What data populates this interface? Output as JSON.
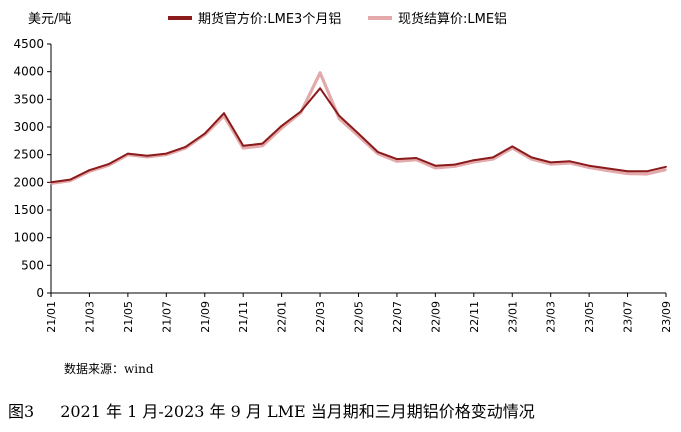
{
  "chart_data": {
    "type": "line",
    "y_unit": "美元/吨",
    "ylim": [
      0,
      4500
    ],
    "y_ticks": [
      0,
      500,
      1000,
      1500,
      2000,
      2500,
      3000,
      3500,
      4000,
      4500
    ],
    "x_tick_labels": [
      "21/01",
      "21/03",
      "21/05",
      "21/07",
      "21/09",
      "21/11",
      "22/01",
      "22/03",
      "22/05",
      "22/07",
      "22/09",
      "22/11",
      "23/01",
      "23/03",
      "23/05",
      "23/07",
      "23/09"
    ],
    "grid": false,
    "legend_position": "top",
    "series": [
      {
        "name": "期货官方价:LME3个月铝",
        "color": "#8b1a1a",
        "points": [
          [
            "21/01",
            2000
          ],
          [
            "21/02",
            2050
          ],
          [
            "21/03",
            2220
          ],
          [
            "21/04",
            2330
          ],
          [
            "21/05",
            2520
          ],
          [
            "21/06",
            2480
          ],
          [
            "21/07",
            2520
          ],
          [
            "21/08",
            2640
          ],
          [
            "21/09",
            2880
          ],
          [
            "21/10",
            3250
          ],
          [
            "21/11",
            2660
          ],
          [
            "21/12",
            2700
          ],
          [
            "22/01",
            3020
          ],
          [
            "22/02",
            3280
          ],
          [
            "22/03",
            3700
          ],
          [
            "22/04",
            3200
          ],
          [
            "22/05",
            2880
          ],
          [
            "22/06",
            2550
          ],
          [
            "22/07",
            2420
          ],
          [
            "22/08",
            2440
          ],
          [
            "22/09",
            2300
          ],
          [
            "22/10",
            2320
          ],
          [
            "22/11",
            2400
          ],
          [
            "22/12",
            2450
          ],
          [
            "23/01",
            2650
          ],
          [
            "23/02",
            2450
          ],
          [
            "23/03",
            2360
          ],
          [
            "23/04",
            2380
          ],
          [
            "23/05",
            2300
          ],
          [
            "23/06",
            2250
          ],
          [
            "23/07",
            2200
          ],
          [
            "23/08",
            2200
          ],
          [
            "23/09",
            2280
          ]
        ]
      },
      {
        "name": "现货结算价:LME铝",
        "color": "#e3a9ab",
        "points": [
          [
            "21/01",
            1980
          ],
          [
            "21/02",
            2030
          ],
          [
            "21/03",
            2200
          ],
          [
            "21/04",
            2310
          ],
          [
            "21/05",
            2500
          ],
          [
            "21/06",
            2460
          ],
          [
            "21/07",
            2500
          ],
          [
            "21/08",
            2620
          ],
          [
            "21/09",
            2860
          ],
          [
            "21/10",
            3200
          ],
          [
            "21/11",
            2620
          ],
          [
            "21/12",
            2660
          ],
          [
            "22/01",
            2980
          ],
          [
            "22/02",
            3260
          ],
          [
            "22/03",
            3980
          ],
          [
            "22/04",
            3150
          ],
          [
            "22/05",
            2840
          ],
          [
            "22/06",
            2520
          ],
          [
            "22/07",
            2380
          ],
          [
            "22/08",
            2410
          ],
          [
            "22/09",
            2260
          ],
          [
            "22/10",
            2290
          ],
          [
            "22/11",
            2370
          ],
          [
            "22/12",
            2420
          ],
          [
            "23/01",
            2620
          ],
          [
            "23/02",
            2420
          ],
          [
            "23/03",
            2330
          ],
          [
            "23/04",
            2350
          ],
          [
            "23/05",
            2270
          ],
          [
            "23/06",
            2210
          ],
          [
            "23/07",
            2160
          ],
          [
            "23/08",
            2150
          ],
          [
            "23/09",
            2230
          ]
        ]
      }
    ]
  },
  "source": "数据来源：wind",
  "caption": {
    "number": "图3",
    "text": "2021 年 1 月-2023 年 9 月 LME 当月期和三月期铝价格变动情况"
  }
}
